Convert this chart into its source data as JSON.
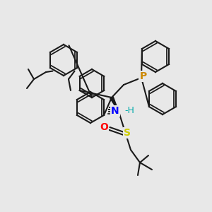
{
  "bg_color": "#e8e8e8",
  "bond_color": "#1a1a1a",
  "bond_width": 1.5,
  "atom_colors": {
    "O": "#ff0000",
    "S": "#cccc00",
    "N": "#0000ff",
    "H": "#00aaaa",
    "P": "#cc8800",
    "C": "#1a1a1a"
  },
  "font_size": 9
}
